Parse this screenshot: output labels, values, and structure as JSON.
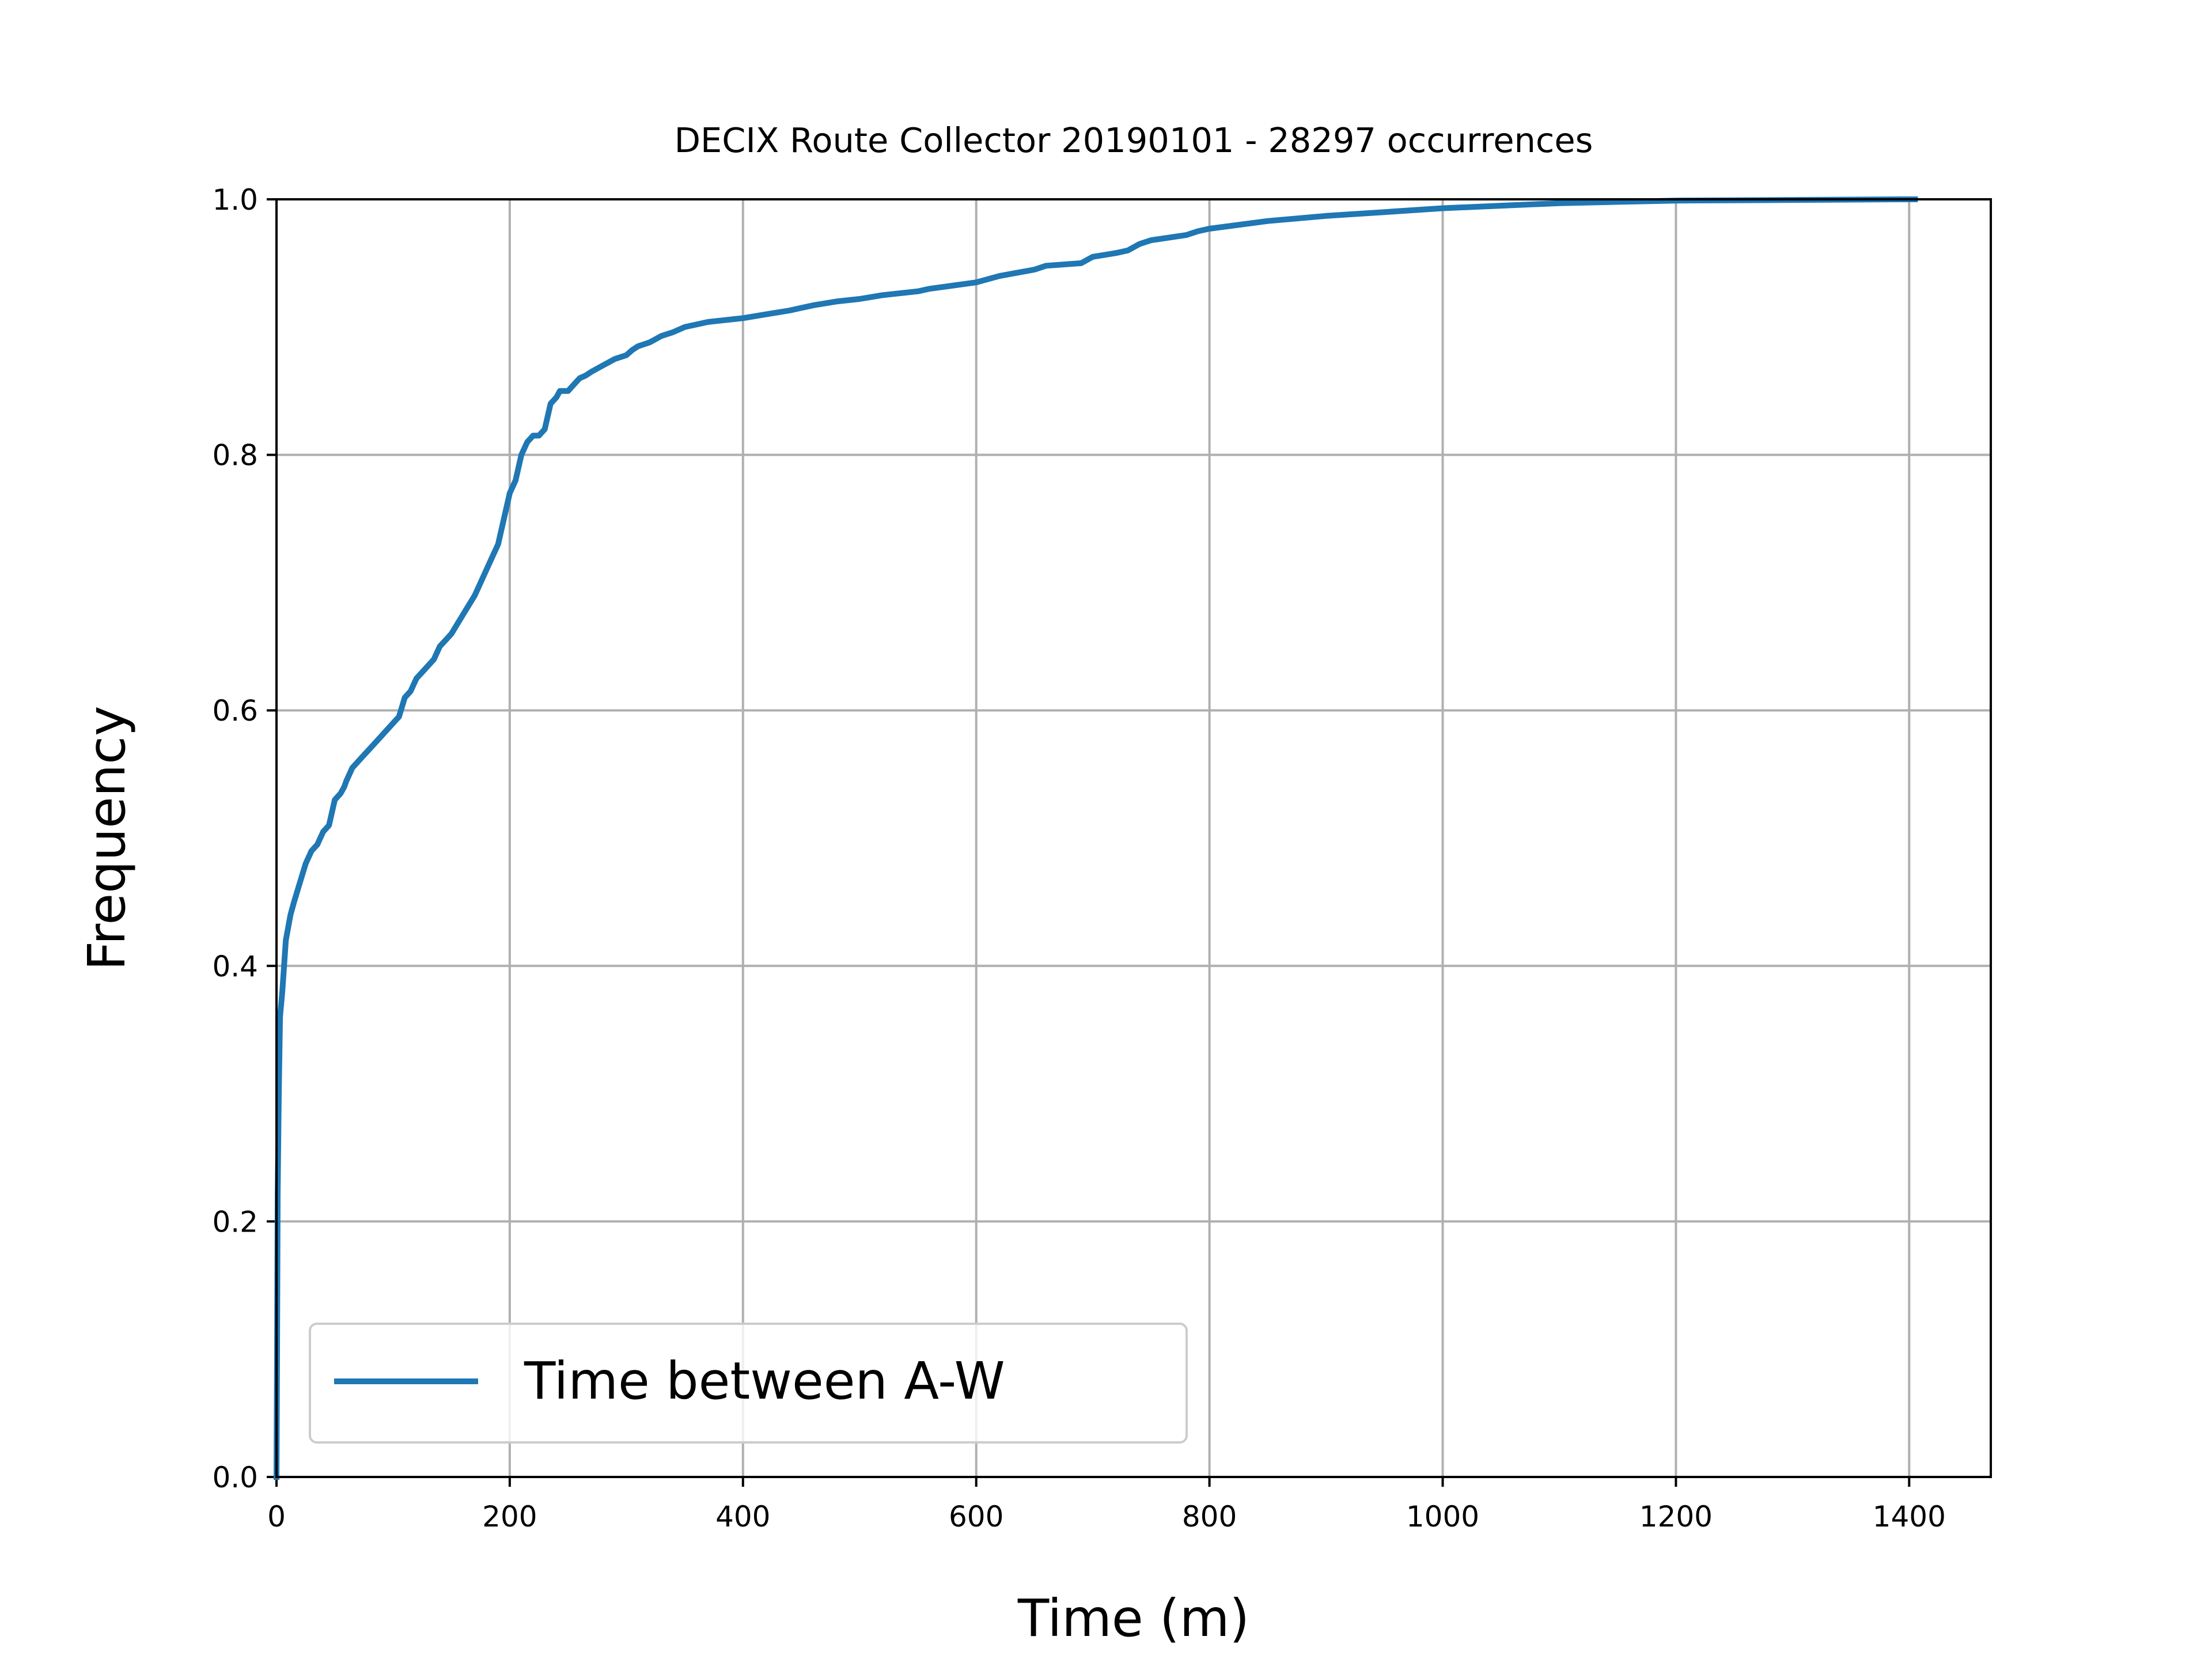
{
  "chart_data": {
    "type": "line",
    "title": "DECIX Route Collector 20190101 - 28297 occurrences",
    "xlabel": "Time (m)",
    "ylabel": "Frequency",
    "xlim": [
      0,
      1470
    ],
    "ylim": [
      0.0,
      1.0
    ],
    "xticks": [
      0,
      200,
      400,
      600,
      800,
      1000,
      1200,
      1400
    ],
    "yticks": [
      0.0,
      0.2,
      0.4,
      0.6,
      0.8,
      1.0
    ],
    "xtick_labels": [
      "0",
      "200",
      "400",
      "600",
      "800",
      "1000",
      "1200",
      "1400"
    ],
    "ytick_labels": [
      "0.0",
      "0.2",
      "0.4",
      "0.6",
      "0.8",
      "1.0"
    ],
    "grid": true,
    "legend_position": "lower-left",
    "series": [
      {
        "name": "Time between A-W",
        "color": "#1f77b4",
        "x": [
          0,
          0.5,
          1,
          2,
          3,
          5,
          8,
          10,
          12,
          15,
          20,
          25,
          30,
          35,
          40,
          45,
          50,
          55,
          58,
          60,
          65,
          70,
          75,
          80,
          90,
          100,
          105,
          110,
          115,
          120,
          125,
          130,
          135,
          140,
          145,
          150,
          160,
          170,
          175,
          180,
          185,
          190,
          195,
          200,
          205,
          210,
          215,
          220,
          225,
          230,
          235,
          240,
          243,
          245,
          250,
          255,
          260,
          265,
          270,
          280,
          290,
          300,
          305,
          310,
          320,
          330,
          340,
          350,
          360,
          370,
          380,
          390,
          400,
          420,
          440,
          450,
          460,
          480,
          500,
          520,
          550,
          560,
          600,
          620,
          650,
          660,
          690,
          700,
          720,
          730,
          740,
          750,
          780,
          790,
          800,
          850,
          900,
          950,
          1000,
          1100,
          1200,
          1300,
          1400,
          1405
        ],
        "y": [
          0.0,
          0.1,
          0.22,
          0.3,
          0.36,
          0.38,
          0.42,
          0.43,
          0.44,
          0.45,
          0.465,
          0.48,
          0.49,
          0.495,
          0.505,
          0.51,
          0.53,
          0.535,
          0.54,
          0.545,
          0.555,
          0.56,
          0.565,
          0.57,
          0.58,
          0.59,
          0.595,
          0.61,
          0.615,
          0.625,
          0.63,
          0.635,
          0.64,
          0.65,
          0.655,
          0.66,
          0.675,
          0.69,
          0.7,
          0.71,
          0.72,
          0.73,
          0.75,
          0.77,
          0.78,
          0.8,
          0.81,
          0.815,
          0.815,
          0.82,
          0.84,
          0.845,
          0.85,
          0.85,
          0.85,
          0.855,
          0.86,
          0.862,
          0.865,
          0.87,
          0.875,
          0.878,
          0.882,
          0.885,
          0.888,
          0.893,
          0.896,
          0.9,
          0.902,
          0.904,
          0.905,
          0.906,
          0.907,
          0.91,
          0.913,
          0.915,
          0.917,
          0.92,
          0.922,
          0.925,
          0.928,
          0.93,
          0.935,
          0.94,
          0.945,
          0.948,
          0.95,
          0.955,
          0.958,
          0.96,
          0.965,
          0.968,
          0.972,
          0.975,
          0.977,
          0.983,
          0.987,
          0.99,
          0.993,
          0.997,
          0.999,
          0.9995,
          1.0,
          1.0
        ]
      }
    ]
  }
}
